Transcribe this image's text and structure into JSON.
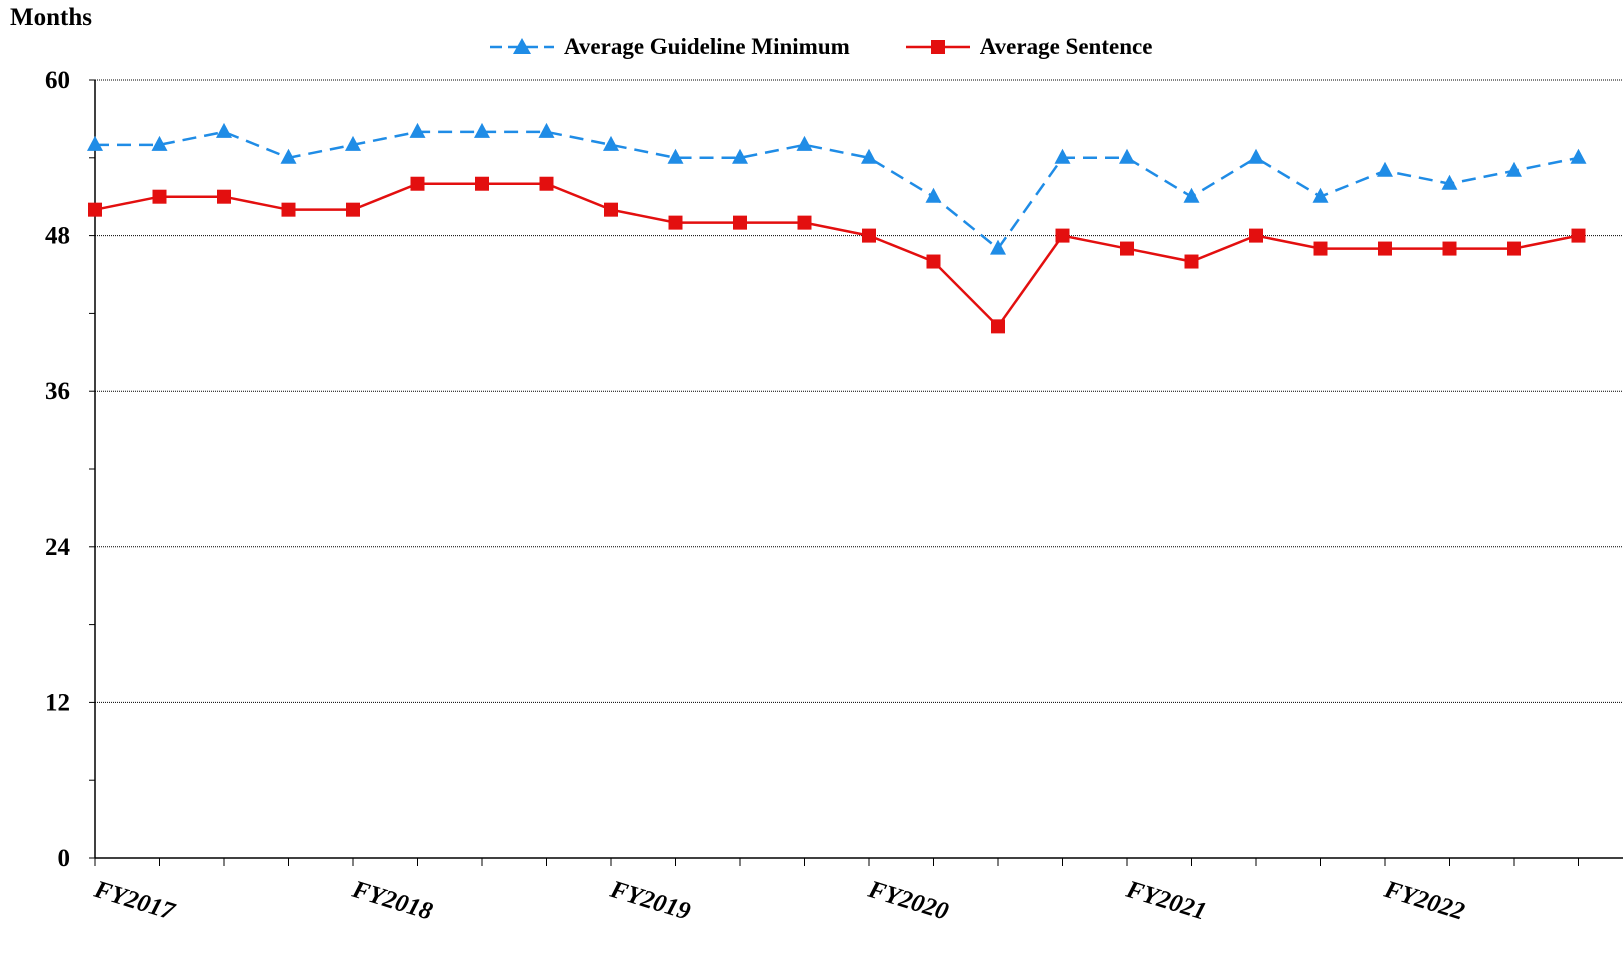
{
  "chart_data": {
    "type": "line",
    "ylabel": "Months",
    "ylim": [
      0,
      60
    ],
    "yticks": [
      0,
      12,
      24,
      36,
      48,
      60
    ],
    "grid": true,
    "legend_position": "top-center",
    "x_count": 24,
    "x_labels": [
      {
        "index": 0,
        "label": "FY2017"
      },
      {
        "index": 4,
        "label": "FY2018"
      },
      {
        "index": 8,
        "label": "FY2019"
      },
      {
        "index": 12,
        "label": "FY2020"
      },
      {
        "index": 16,
        "label": "FY2021"
      },
      {
        "index": 20,
        "label": "FY2022"
      }
    ],
    "series": [
      {
        "name": "Average Guideline Minimum",
        "color": "#1f8ce6",
        "style": "dashed",
        "marker": "triangle",
        "values": [
          55,
          55,
          56,
          54,
          55,
          56,
          56,
          56,
          55,
          54,
          54,
          55,
          54,
          51,
          47,
          54,
          54,
          51,
          54,
          51,
          53,
          52,
          53,
          54
        ]
      },
      {
        "name": "Average Sentence",
        "color": "#e30f0f",
        "style": "solid",
        "marker": "square",
        "values": [
          50,
          51,
          51,
          50,
          50,
          52,
          52,
          52,
          50,
          49,
          49,
          49,
          48,
          46,
          41,
          48,
          47,
          46,
          48,
          47,
          47,
          47,
          47,
          48
        ]
      }
    ]
  }
}
